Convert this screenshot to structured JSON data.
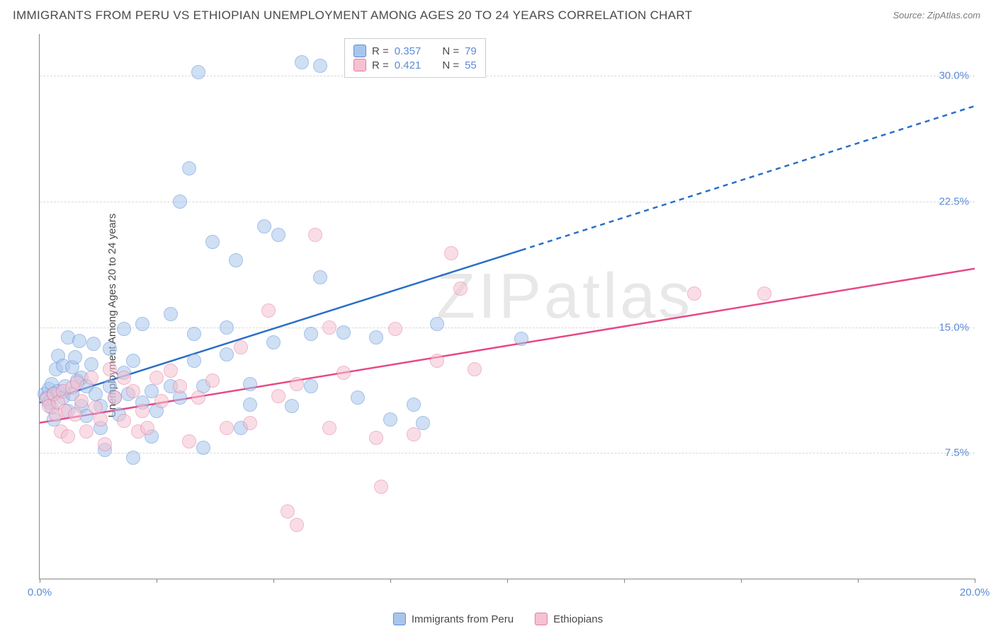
{
  "title": "IMMIGRANTS FROM PERU VS ETHIOPIAN UNEMPLOYMENT AMONG AGES 20 TO 24 YEARS CORRELATION CHART",
  "source": "Source: ZipAtlas.com",
  "ylabel": "Unemployment Among Ages 20 to 24 years",
  "watermark": "ZIPatlas",
  "chart": {
    "type": "scatter",
    "xlim": [
      0,
      20
    ],
    "ylim": [
      0,
      32.5
    ],
    "xticks": [
      0,
      2.5,
      5,
      7.5,
      10,
      12.5,
      15,
      17.5,
      20
    ],
    "xtick_labels": {
      "0": "0.0%",
      "20": "20.0%"
    },
    "yticks": [
      7.5,
      15.0,
      22.5,
      30.0
    ],
    "ytick_labels": [
      "7.5%",
      "15.0%",
      "22.5%",
      "30.0%"
    ],
    "grid_color": "#d8d8d8",
    "axis_color": "#888888",
    "background_color": "#ffffff",
    "marker_radius": 10,
    "marker_opacity": 0.55,
    "line_width": 2.5,
    "series": [
      {
        "name": "Immigrants from Peru",
        "color_fill": "#a8c6ec",
        "color_stroke": "#5a8fd6",
        "line_color": "#2b6fc7",
        "R": "0.357",
        "N": "79",
        "trend": {
          "x1": 0,
          "y1": 10.5,
          "x2": 10.3,
          "y2": 19.6,
          "x2_ext": 20,
          "y2_ext": 28.2
        },
        "points": [
          [
            0.1,
            11.0
          ],
          [
            0.15,
            10.8
          ],
          [
            0.2,
            11.3
          ],
          [
            0.2,
            10.5
          ],
          [
            0.25,
            11.6
          ],
          [
            0.25,
            10.2
          ],
          [
            0.3,
            11.0
          ],
          [
            0.3,
            9.5
          ],
          [
            0.35,
            12.5
          ],
          [
            0.4,
            11.2
          ],
          [
            0.4,
            13.3
          ],
          [
            0.5,
            10.8
          ],
          [
            0.5,
            12.7
          ],
          [
            0.55,
            11.5
          ],
          [
            0.6,
            10.0
          ],
          [
            0.6,
            14.4
          ],
          [
            0.7,
            12.6
          ],
          [
            0.7,
            11.0
          ],
          [
            0.75,
            13.2
          ],
          [
            0.8,
            11.8
          ],
          [
            0.85,
            14.2
          ],
          [
            0.9,
            10.3
          ],
          [
            0.9,
            12.0
          ],
          [
            1.0,
            11.5
          ],
          [
            1.0,
            9.7
          ],
          [
            1.1,
            12.8
          ],
          [
            1.15,
            14.0
          ],
          [
            1.2,
            11.0
          ],
          [
            1.3,
            9.0
          ],
          [
            1.3,
            10.3
          ],
          [
            1.4,
            7.7
          ],
          [
            1.5,
            13.7
          ],
          [
            1.5,
            11.5
          ],
          [
            1.6,
            10.8
          ],
          [
            1.7,
            9.8
          ],
          [
            1.8,
            12.3
          ],
          [
            1.8,
            14.9
          ],
          [
            1.9,
            11.0
          ],
          [
            2.0,
            7.2
          ],
          [
            2.0,
            13.0
          ],
          [
            2.2,
            15.2
          ],
          [
            2.2,
            10.5
          ],
          [
            2.4,
            8.5
          ],
          [
            2.4,
            11.2
          ],
          [
            2.5,
            10.0
          ],
          [
            2.8,
            11.5
          ],
          [
            2.8,
            15.8
          ],
          [
            3.0,
            10.8
          ],
          [
            3.0,
            22.5
          ],
          [
            3.2,
            24.5
          ],
          [
            3.3,
            14.6
          ],
          [
            3.3,
            13.0
          ],
          [
            3.4,
            30.2
          ],
          [
            3.5,
            11.5
          ],
          [
            3.5,
            7.8
          ],
          [
            3.7,
            20.1
          ],
          [
            4.0,
            15.0
          ],
          [
            4.0,
            13.4
          ],
          [
            4.2,
            19.0
          ],
          [
            4.3,
            9.0
          ],
          [
            4.5,
            11.6
          ],
          [
            4.5,
            10.4
          ],
          [
            4.8,
            21.0
          ],
          [
            5.0,
            14.1
          ],
          [
            5.1,
            20.5
          ],
          [
            5.4,
            10.3
          ],
          [
            5.6,
            30.8
          ],
          [
            5.8,
            14.6
          ],
          [
            5.8,
            11.5
          ],
          [
            6.0,
            18.0
          ],
          [
            6.0,
            30.6
          ],
          [
            6.5,
            14.7
          ],
          [
            6.8,
            10.8
          ],
          [
            7.2,
            14.4
          ],
          [
            7.5,
            9.5
          ],
          [
            8.0,
            10.4
          ],
          [
            8.2,
            9.3
          ],
          [
            8.5,
            15.2
          ],
          [
            10.3,
            14.3
          ]
        ]
      },
      {
        "name": "Ethiopians",
        "color_fill": "#f5c2d1",
        "color_stroke": "#e87ba0",
        "line_color": "#e64987",
        "R": "0.421",
        "N": "55",
        "trend": {
          "x1": 0,
          "y1": 9.3,
          "x2": 20,
          "y2": 18.5,
          "x2_ext": 20,
          "y2_ext": 18.5
        },
        "points": [
          [
            0.15,
            10.7
          ],
          [
            0.2,
            10.3
          ],
          [
            0.3,
            11.0
          ],
          [
            0.35,
            9.8
          ],
          [
            0.4,
            10.5
          ],
          [
            0.45,
            8.8
          ],
          [
            0.5,
            11.2
          ],
          [
            0.55,
            10.0
          ],
          [
            0.6,
            8.5
          ],
          [
            0.7,
            11.4
          ],
          [
            0.75,
            9.8
          ],
          [
            0.8,
            11.7
          ],
          [
            0.9,
            10.6
          ],
          [
            1.0,
            8.8
          ],
          [
            1.1,
            12.0
          ],
          [
            1.2,
            10.2
          ],
          [
            1.3,
            9.5
          ],
          [
            1.4,
            8.0
          ],
          [
            1.5,
            12.5
          ],
          [
            1.6,
            10.8
          ],
          [
            1.8,
            12.0
          ],
          [
            1.8,
            9.4
          ],
          [
            2.0,
            11.2
          ],
          [
            2.1,
            8.8
          ],
          [
            2.2,
            10.0
          ],
          [
            2.3,
            9.0
          ],
          [
            2.5,
            12.0
          ],
          [
            2.6,
            10.6
          ],
          [
            2.8,
            12.4
          ],
          [
            3.0,
            11.5
          ],
          [
            3.2,
            8.2
          ],
          [
            3.4,
            10.8
          ],
          [
            3.7,
            11.8
          ],
          [
            4.0,
            9.0
          ],
          [
            4.3,
            13.8
          ],
          [
            4.5,
            9.3
          ],
          [
            4.9,
            16.0
          ],
          [
            5.1,
            10.9
          ],
          [
            5.3,
            4.0
          ],
          [
            5.5,
            11.6
          ],
          [
            5.5,
            3.2
          ],
          [
            5.9,
            20.5
          ],
          [
            6.2,
            15.0
          ],
          [
            6.2,
            9.0
          ],
          [
            6.5,
            12.3
          ],
          [
            7.2,
            8.4
          ],
          [
            7.3,
            5.5
          ],
          [
            7.6,
            14.9
          ],
          [
            8.0,
            8.6
          ],
          [
            8.5,
            13.0
          ],
          [
            8.8,
            19.4
          ],
          [
            9.0,
            17.3
          ],
          [
            9.3,
            12.5
          ],
          [
            14.0,
            17.0
          ],
          [
            15.5,
            17.0
          ]
        ]
      }
    ]
  },
  "legend_top": {
    "rows": [
      {
        "swatch": 0,
        "label_R": "R =",
        "val_R": "0.357",
        "label_N": "N =",
        "val_N": "79"
      },
      {
        "swatch": 1,
        "label_R": "R =",
        "val_R": "0.421",
        "label_N": "N =",
        "val_N": "55"
      }
    ]
  },
  "legend_bottom": [
    {
      "swatch": 0,
      "label": "Immigrants from Peru"
    },
    {
      "swatch": 1,
      "label": "Ethiopians"
    }
  ]
}
